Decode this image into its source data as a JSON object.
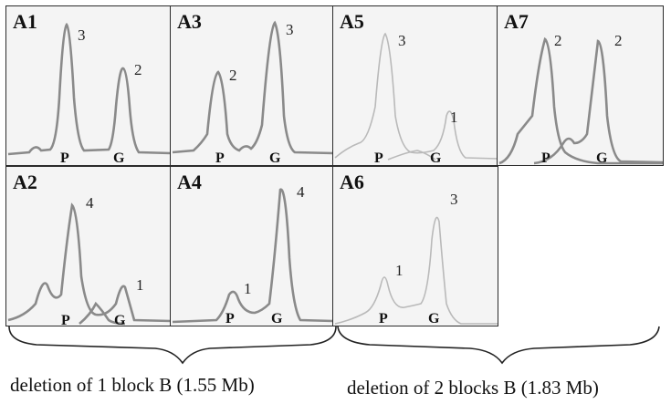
{
  "panels": [
    {
      "id": "A1",
      "label": "A1",
      "peaks": [
        {
          "letter": "P",
          "count": "3"
        },
        {
          "letter": "G",
          "count": "2"
        }
      ]
    },
    {
      "id": "A3",
      "label": "A3",
      "peaks": [
        {
          "letter": "P",
          "count": "2"
        },
        {
          "letter": "G",
          "count": "3"
        }
      ]
    },
    {
      "id": "A5",
      "label": "A5",
      "peaks": [
        {
          "letter": "P",
          "count": "3"
        },
        {
          "letter": "G",
          "count": "1"
        }
      ]
    },
    {
      "id": "A7",
      "label": "A7",
      "peaks": [
        {
          "letter": "P",
          "count": "2"
        },
        {
          "letter": "G",
          "count": "2"
        }
      ]
    },
    {
      "id": "A2",
      "label": "A2",
      "peaks": [
        {
          "letter": "P",
          "count": "4"
        },
        {
          "letter": "G",
          "count": "1"
        }
      ]
    },
    {
      "id": "A4",
      "label": "A4",
      "peaks": [
        {
          "letter": "P",
          "count": "1"
        },
        {
          "letter": "G",
          "count": "4"
        }
      ]
    },
    {
      "id": "A6",
      "label": "A6",
      "peaks": [
        {
          "letter": "P",
          "count": "1"
        },
        {
          "letter": "G",
          "count": "3"
        }
      ]
    }
  ],
  "captions": {
    "left": "deletion of 1 block B (1.55 Mb)",
    "right": "deletion of 2 blocks B (1.83 Mb)"
  },
  "colors": {
    "trace_dark": "#8a8a8a",
    "trace_light": "#b9b9b9",
    "border": "#2b2b2b",
    "panel_bg": "#f4f4f4"
  }
}
